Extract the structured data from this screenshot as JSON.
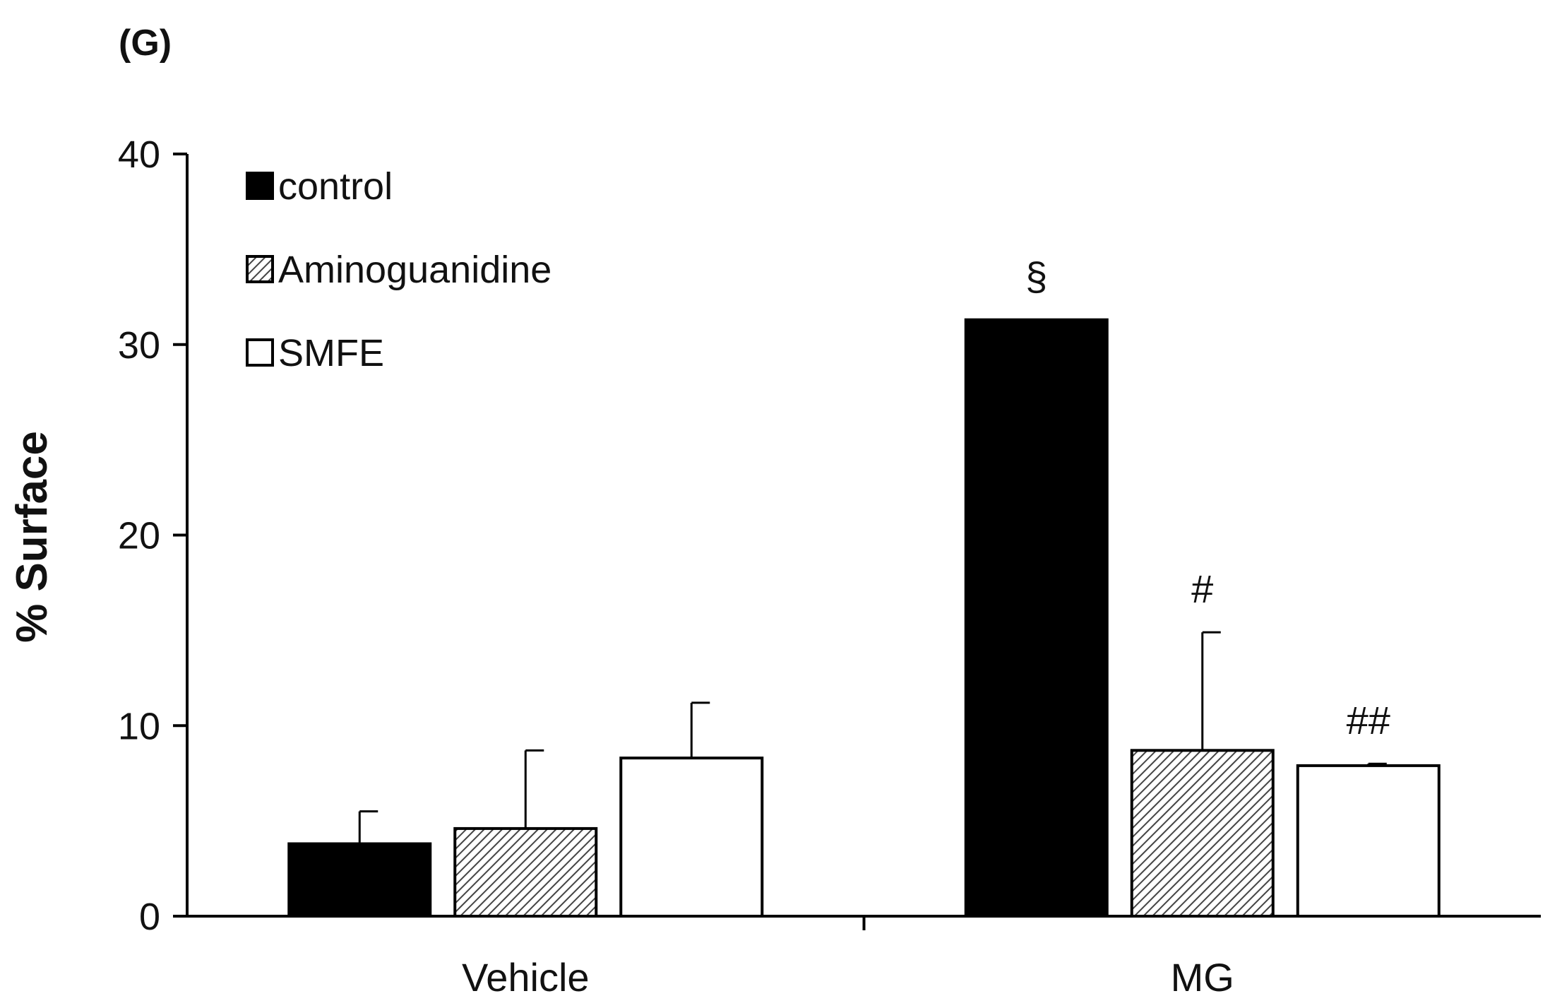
{
  "panel_label": "(G)",
  "chart_data": {
    "type": "bar",
    "ylabel": "% Surface",
    "xlabel": "",
    "ylim": [
      0,
      40
    ],
    "yticks": [
      0,
      10,
      20,
      30,
      40
    ],
    "categories": [
      "Vehicle",
      "MG"
    ],
    "legend_position": "top-left",
    "grid": false,
    "series": [
      {
        "name": "control",
        "fill": "#000000",
        "pattern": "solid",
        "values": [
          3.8,
          31.3
        ],
        "errors": [
          1.7,
          0
        ],
        "annotations": [
          "",
          "§"
        ]
      },
      {
        "name": "Aminoguanidine",
        "fill": "#ffffff",
        "pattern": "diagonal-hatch",
        "values": [
          4.6,
          8.7
        ],
        "errors": [
          4.1,
          6.2
        ],
        "annotations": [
          "",
          "#"
        ]
      },
      {
        "name": "SMFE",
        "fill": "#ffffff",
        "pattern": "solid",
        "values": [
          8.3,
          7.9
        ],
        "errors": [
          2.9,
          0.1
        ],
        "annotations": [
          "",
          "##"
        ]
      }
    ]
  }
}
